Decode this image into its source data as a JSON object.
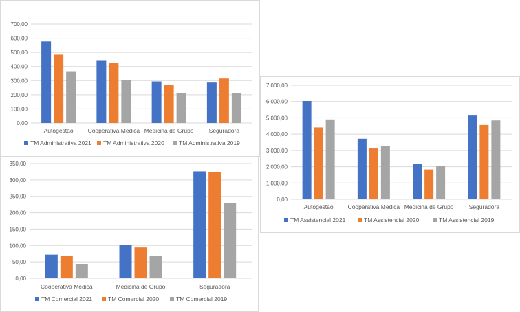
{
  "colors": {
    "series_2021": "#4472C4",
    "series_2020": "#ED7D31",
    "series_2019": "#A5A5A5",
    "grid": "#D9D9D9",
    "text": "#595959"
  },
  "chart_data": [
    {
      "id": "admin",
      "type": "bar",
      "title": "",
      "xlabel": "",
      "ylabel": "",
      "categories": [
        "Autogestão",
        "Cooperativa Médica",
        "Medicina de Grupo",
        "Seguradora"
      ],
      "series": [
        {
          "name": "TM Administrativa 2021",
          "values": [
            577,
            440,
            294,
            286
          ]
        },
        {
          "name": "TM Administrativa 2020",
          "values": [
            484,
            424,
            270,
            315
          ]
        },
        {
          "name": "TM Administrativa 2019",
          "values": [
            362,
            302,
            210,
            210
          ]
        }
      ],
      "ylim": [
        0,
        700
      ],
      "yticks": [
        "0,00",
        "100,00",
        "200,00",
        "300,00",
        "400,00",
        "500,00",
        "600,00",
        "700,00"
      ],
      "grid": true,
      "legend": "bottom"
    },
    {
      "id": "assist",
      "type": "bar",
      "title": "",
      "xlabel": "",
      "ylabel": "",
      "categories": [
        "Autogestão",
        "Cooperativa Médica",
        "Medicina de Grupo",
        "Seguradora"
      ],
      "series": [
        {
          "name": "TM Assistencial 2021",
          "values": [
            6030,
            3720,
            2160,
            5140
          ]
        },
        {
          "name": "TM Assistencial 2020",
          "values": [
            4410,
            3120,
            1830,
            4560
          ]
        },
        {
          "name": "TM Assistencial 2019",
          "values": [
            4900,
            3250,
            2060,
            4840
          ]
        }
      ],
      "ylim": [
        0,
        7000
      ],
      "yticks": [
        "0,00",
        "1.000,00",
        "2.000,00",
        "3.000,00",
        "4.000,00",
        "5.000,00",
        "6.000,00",
        "7.000,00"
      ],
      "grid": true,
      "legend": "bottom"
    },
    {
      "id": "comm",
      "type": "bar",
      "title": "",
      "xlabel": "",
      "ylabel": "",
      "categories": [
        "Cooperativa Médica",
        "Medicina de Grupo",
        "Seguradora"
      ],
      "series": [
        {
          "name": "TM Comercial 2021",
          "values": [
            72,
            101,
            326
          ]
        },
        {
          "name": "TM Comercial 2020",
          "values": [
            69,
            94,
            324
          ]
        },
        {
          "name": "TM Comercial 2019",
          "values": [
            44,
            69,
            229
          ]
        }
      ],
      "ylim": [
        0,
        350
      ],
      "yticks": [
        "0,00",
        "50,00",
        "100,00",
        "150,00",
        "200,00",
        "250,00",
        "300,00",
        "350,00"
      ],
      "grid": true,
      "legend": "bottom"
    }
  ]
}
